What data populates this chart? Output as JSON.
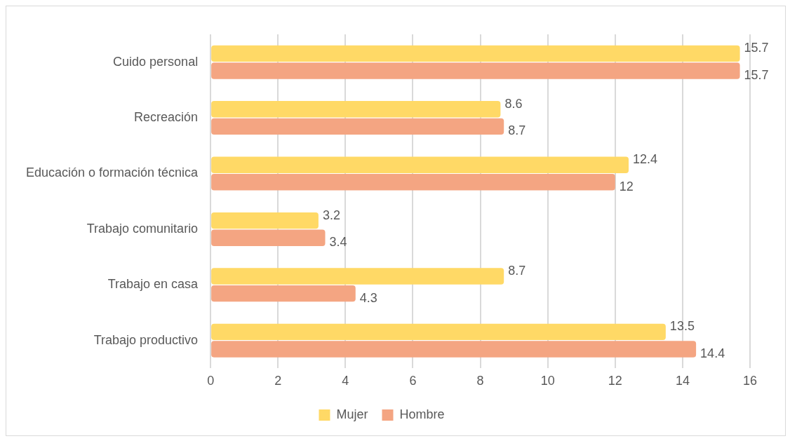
{
  "chart_data": {
    "type": "bar",
    "orientation": "horizontal",
    "categories": [
      "Cuido personal",
      "Recreación",
      "Educación o formación técnica",
      "Trabajo comunitario",
      "Trabajo en casa",
      "Trabajo productivo"
    ],
    "series": [
      {
        "name": "Mujer",
        "color": "#ffd966",
        "values": [
          15.7,
          8.6,
          12.4,
          3.2,
          8.7,
          13.5
        ]
      },
      {
        "name": "Hombre",
        "color": "#f4a582",
        "values": [
          15.7,
          8.7,
          12,
          3.4,
          4.3,
          14.4
        ]
      }
    ],
    "xlim": [
      0,
      16
    ],
    "xticks": [
      0,
      2,
      4,
      6,
      8,
      10,
      12,
      14,
      16
    ],
    "grid": "x",
    "legend": "bottom",
    "data_labels": true
  }
}
